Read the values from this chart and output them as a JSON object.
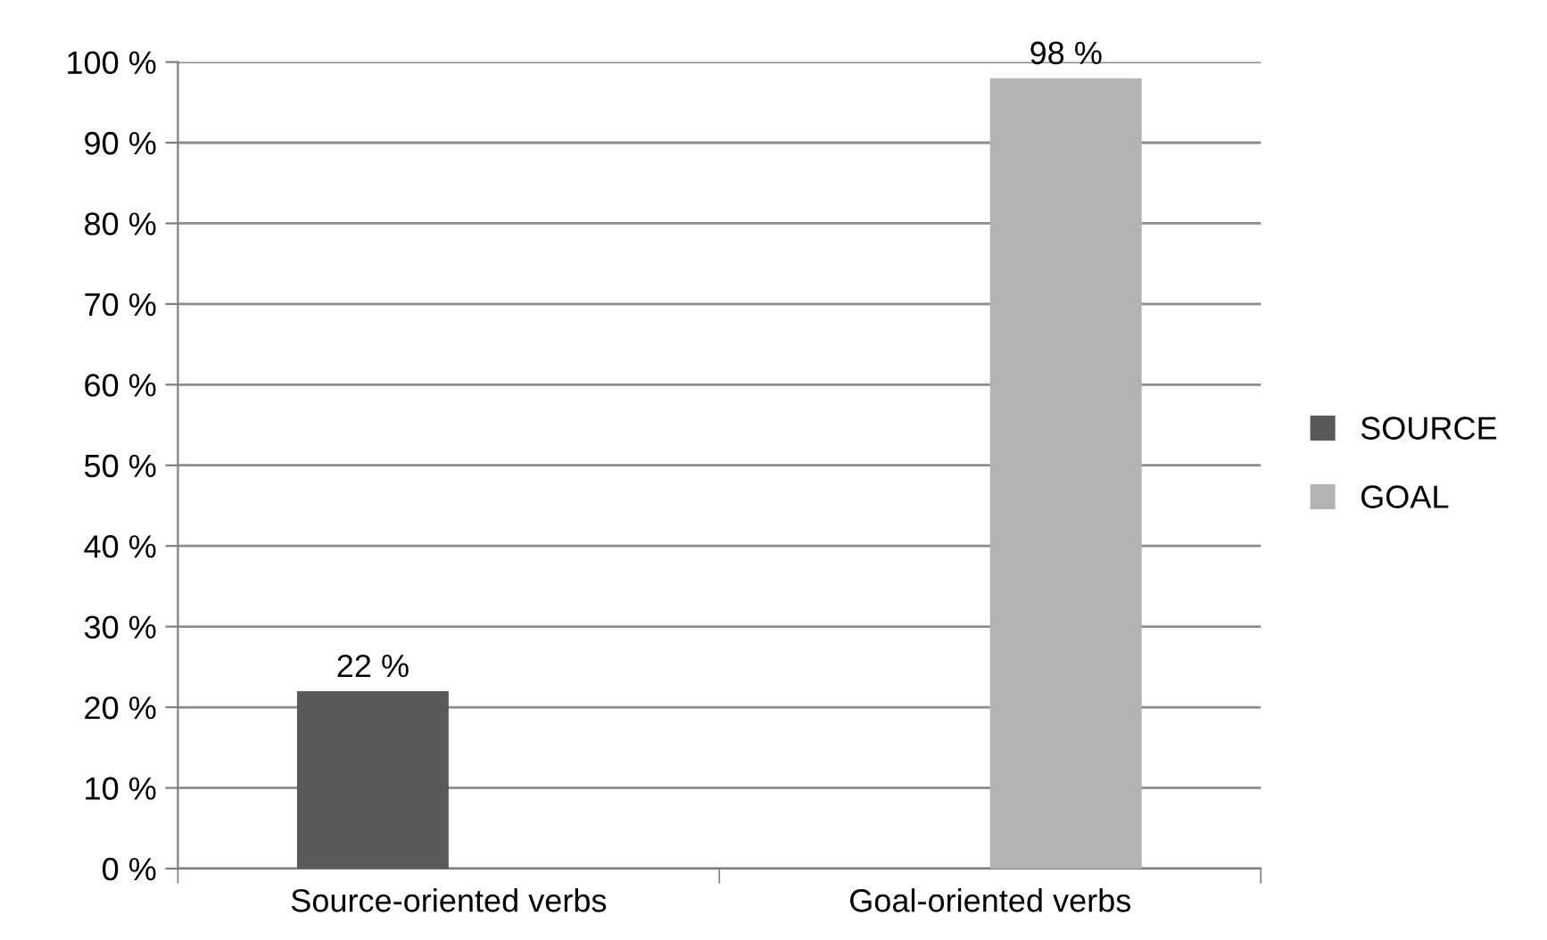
{
  "chart_data": {
    "type": "bar",
    "categories": [
      "Source-oriented verbs",
      "Goal-oriented verbs"
    ],
    "series": [
      {
        "name": "SOURCE",
        "color": "#595959",
        "values": [
          22,
          null
        ],
        "value_labels": [
          "22 %",
          null
        ]
      },
      {
        "name": "GOAL",
        "color": "#b3b3b3",
        "values": [
          null,
          98
        ],
        "value_labels": [
          null,
          "98 %"
        ]
      }
    ],
    "ylim": [
      0,
      100
    ],
    "yticks": [
      {
        "value": 0,
        "label": "0 %"
      },
      {
        "value": 10,
        "label": "10 %"
      },
      {
        "value": 20,
        "label": "20 %"
      },
      {
        "value": 30,
        "label": "30 %"
      },
      {
        "value": 40,
        "label": "40 %"
      },
      {
        "value": 50,
        "label": "50 %"
      },
      {
        "value": 60,
        "label": "60 %"
      },
      {
        "value": 70,
        "label": "70 %"
      },
      {
        "value": 80,
        "label": "80 %"
      },
      {
        "value": 90,
        "label": "90 %"
      },
      {
        "value": 100,
        "label": "100 %"
      }
    ],
    "grid": "y",
    "legend": "right"
  }
}
